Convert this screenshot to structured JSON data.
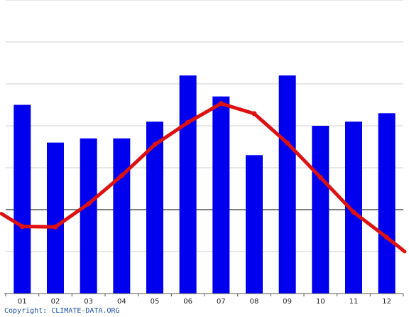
{
  "chart_data": {
    "type": "bar",
    "categories": [
      "01",
      "02",
      "03",
      "04",
      "05",
      "06",
      "07",
      "08",
      "09",
      "10",
      "11",
      "12"
    ],
    "series": [
      {
        "type": "bar",
        "values": [
          45,
          36,
          37,
          37,
          41,
          52,
          47,
          33,
          52,
          40,
          41,
          43
        ]
      },
      {
        "type": "line",
        "values": [
          -4.0,
          -4.1,
          1.4,
          8.1,
          15.5,
          20.8,
          25.3,
          22.9,
          15.9,
          7.7,
          -0.6,
          -6.6
        ]
      }
    ],
    "y_left_range": [
      0,
      70
    ],
    "y_right_range": [
      -20,
      50
    ],
    "grid": true,
    "colors": {
      "bars": "#0000ee",
      "line": "#dd1111",
      "grid": "#d0d0d0",
      "zero_line": "#000000"
    }
  },
  "footer": {
    "copyright": "Copyright: CLIMATE-DATA.ORG"
  }
}
